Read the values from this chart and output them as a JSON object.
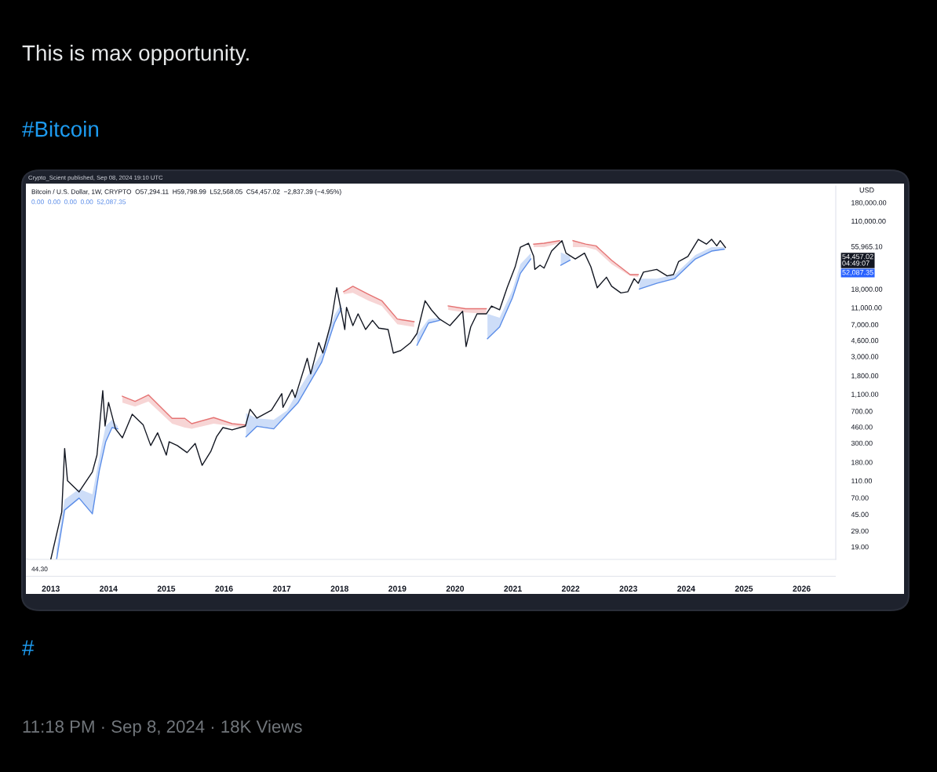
{
  "chart_data": {
    "type": "line",
    "title": "This is max opportunity.",
    "subtitle": "#Bitcoin",
    "ylabel": "USD",
    "log": true,
    "xlim": [
      2012.61,
      2026.59
    ],
    "xticks": [
      2013,
      2014,
      2015,
      2016,
      2017,
      2018,
      2019,
      2020,
      2021,
      2022,
      2023,
      2024,
      2025,
      2026
    ],
    "ylim": [
      13.6,
      280000
    ],
    "yticks": [
      {
        "value": 19,
        "label": "19.00"
      },
      {
        "value": 29,
        "label": "29.00"
      },
      {
        "value": 45,
        "label": "45.00"
      },
      {
        "value": 70,
        "label": "70.00"
      },
      {
        "value": 110,
        "label": "110.00"
      },
      {
        "value": 180,
        "label": "180.00"
      },
      {
        "value": 300,
        "label": "300.00"
      },
      {
        "value": 460,
        "label": "460.00"
      },
      {
        "value": 700,
        "label": "700.00"
      },
      {
        "value": 1100,
        "label": "1,100.00"
      },
      {
        "value": 1800,
        "label": "1,800.00"
      },
      {
        "value": 3000,
        "label": "3,000.00"
      },
      {
        "value": 4600,
        "label": "4,600.00"
      },
      {
        "value": 7000,
        "label": "7,000.00"
      },
      {
        "value": 11000,
        "label": "11,000.00"
      },
      {
        "value": 18000,
        "label": "18,000.00"
      },
      {
        "value": 55965.1,
        "label": "55,965.10"
      },
      {
        "value": 110000,
        "label": "110,000.00"
      },
      {
        "value": 180000,
        "label": "180,000.00"
      }
    ],
    "annotations": [
      "Crypto_Scient published, Sep 08, 2024 19:10 UTC",
      "Bitcoin / U.S. Dollar, 1W, CRYPTO  O57,294.11  H59,798.99  L52,568.05  C54,457.02  −2,837.39 (−4.95%)",
      "0.00  0.00  0.00  0.00  52,087.35",
      "44.30",
      "#",
      "11:18 PM · Sep 8, 2024 · 18K Views",
      "54,457.02\n04:49:07",
      "52,087.35"
    ],
    "series": [
      {
        "color": "#131722",
        "x": [
          2013.0,
          2013.19,
          2013.24,
          2013.29,
          2013.49,
          2013.72,
          2013.8,
          2013.9,
          2013.94,
          2014.0,
          2014.12,
          2014.24,
          2014.41,
          2014.6,
          2014.73,
          2014.85,
          2015.0,
          2015.05,
          2015.19,
          2015.36,
          2015.5,
          2015.62,
          2015.77,
          2015.87,
          2015.98,
          2016.14,
          2016.37,
          2016.45,
          2016.57,
          2016.82,
          2017.0,
          2017.02,
          2017.18,
          2017.23,
          2017.44,
          2017.5,
          2017.64,
          2017.71,
          2017.85,
          2017.95,
          2018.09,
          2018.12,
          2018.23,
          2018.32,
          2018.45,
          2018.57,
          2018.68,
          2018.84,
          2018.93,
          2019.06,
          2019.23,
          2019.34,
          2019.48,
          2019.59,
          2019.73,
          2019.91,
          2020.13,
          2020.19,
          2020.27,
          2020.38,
          2020.54,
          2020.63,
          2020.77,
          2020.9,
          2021.04,
          2021.13,
          2021.27,
          2021.36,
          2021.38,
          2021.47,
          2021.54,
          2021.67,
          2021.85,
          2021.92,
          2022.08,
          2022.24,
          2022.35,
          2022.46,
          2022.62,
          2022.71,
          2022.87,
          2022.99,
          2023.1,
          2023.17,
          2023.26,
          2023.49,
          2023.67,
          2023.78,
          2023.87,
          2024.03,
          2024.21,
          2024.35,
          2024.44,
          2024.53,
          2024.59,
          2024.68
        ],
        "values": [
          13.6,
          48,
          260,
          110,
          82,
          139,
          218,
          1210,
          472,
          884,
          438,
          345,
          647,
          486,
          281,
          394,
          218,
          311,
          281,
          233,
          297,
          166,
          240,
          355,
          453,
          426,
          472,
          737,
          582,
          717,
          1117,
          775,
          1242,
          1008,
          2860,
          1884,
          4340,
          3290,
          7300,
          18680,
          6150,
          11100,
          6820,
          9320,
          6150,
          7840,
          6380,
          6150,
          3290,
          3520,
          4340,
          5540,
          13220,
          10360,
          8120,
          6820,
          10000,
          3910,
          6580,
          9320,
          9320,
          11490,
          10360,
          18680,
          32600,
          54950,
          61000,
          43000,
          30400,
          34000,
          31500,
          49500,
          65400,
          46900,
          40180,
          46900,
          32600,
          18680,
          24700,
          19400,
          16280,
          16800,
          23800,
          21000,
          28300,
          30400,
          25600,
          26500,
          37500,
          43000,
          67700,
          59600,
          67700,
          56900,
          65400,
          54457.02
        ]
      },
      {
        "color": "#5b8de8",
        "x": [
          2013.1,
          2013.24,
          2013.49,
          2013.72,
          2013.84,
          2013.95,
          2014.06,
          2014.16,
          2014.2,
          2016.38,
          2016.57,
          2016.86,
          2017.09,
          2017.28,
          2017.69,
          2017.91,
          2018.03,
          2018.1,
          2019.34,
          2019.54,
          2019.73,
          2019.8,
          2020.56,
          2020.77,
          2020.99,
          2021.13,
          2021.31,
          2021.4,
          2021.83,
          2021.99,
          2022.0,
          2023.19,
          2023.49,
          2023.8,
          2024.16,
          2024.44,
          2024.66
        ],
        "values": [
          13.6,
          50.5,
          69.4,
          45.7,
          144,
          309,
          453,
          438,
          null,
          355,
          469,
          438,
          642,
          878,
          2578,
          7300,
          10700,
          null,
          4050,
          7300,
          7840,
          null,
          4810,
          6580,
          14170,
          27400,
          40180,
          null,
          34000,
          38800,
          null,
          18080,
          21000,
          23800,
          40180,
          49500,
          52087.35
        ],
        "lower": [
          13.6,
          50.5,
          69.4,
          45.7,
          144,
          309,
          453,
          438,
          null,
          355,
          469,
          438,
          642,
          878,
          2578,
          7300,
          10700,
          null,
          4050,
          7300,
          7840,
          null,
          4810,
          6580,
          14170,
          27400,
          40180,
          null,
          34000,
          38800,
          null,
          18080,
          21000,
          23800,
          40180,
          49500,
          52087.35
        ],
        "upper": [
          17.8,
          66.9,
          88.6,
          77,
          204,
          469,
          559,
          469,
          null,
          664,
          578,
          559,
          713,
          1200,
          3290,
          9000,
          12300,
          null,
          5350,
          8120,
          8400,
          null,
          9320,
          8400,
          17400,
          34900,
          46900,
          null,
          47800,
          43000,
          null,
          23800,
          23800,
          26500,
          44600,
          54950,
          54950
        ]
      },
      {
        "color": "#e57373",
        "x": [
          2014.24,
          2014.46,
          2014.69,
          2015.1,
          2015.32,
          2015.44,
          2015.82,
          2016.14,
          2016.37,
          2016.4,
          2018.07,
          2018.23,
          2018.5,
          2018.73,
          2019.0,
          2019.29,
          2019.3,
          2019.88,
          2020.18,
          2020.54,
          2020.6,
          2021.36,
          2021.54,
          2021.81,
          2021.9,
          2022.04,
          2022.26,
          2022.44,
          2022.71,
          2023.03,
          2023.17
        ],
        "values": [
          1043,
          908,
          1082,
          578,
          578,
          503,
          591,
          503,
          486,
          null,
          16800,
          19400,
          15700,
          13220,
          8120,
          7580,
          null,
          11490,
          10700,
          10700,
          null,
          59600,
          61000,
          65400,
          null,
          65400,
          59600,
          56900,
          38800,
          26500,
          26500
        ],
        "lower": [
          878,
          791,
          908,
          503,
          453,
          438,
          503,
          469,
          453,
          null,
          15700,
          16280,
          13220,
          11490,
          7070,
          6580,
          null,
          10360,
          9670,
          9320,
          null,
          54950,
          54950,
          61000,
          null,
          54950,
          54950,
          51200,
          34900,
          25600,
          24700
        ],
        "upper": [
          1043,
          908,
          1082,
          578,
          578,
          503,
          591,
          503,
          486,
          null,
          16800,
          19400,
          15700,
          13220,
          8120,
          7580,
          null,
          11490,
          10700,
          10700,
          null,
          59600,
          61000,
          65400,
          null,
          65400,
          59600,
          56900,
          38800,
          26500,
          26500
        ]
      }
    ]
  }
}
